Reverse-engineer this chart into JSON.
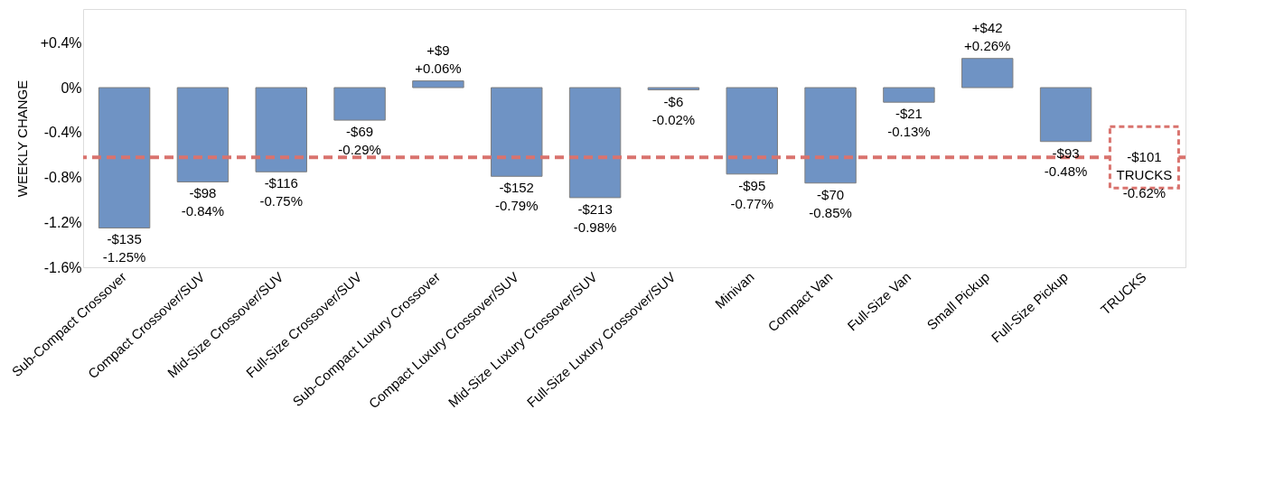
{
  "chart_data": {
    "type": "bar",
    "ylabel": "WEEKLY CHANGE",
    "categories": [
      "Sub-Compact Crossover",
      "Compact Crossover/SUV",
      "Mid-Size Crossover/SUV",
      "Full-Size Crossover/SUV",
      "Sub-Compact Luxury Crossover",
      "Compact Luxury Crossover/SUV",
      "Mid-Size Luxury Crossover/SUV",
      "Full-Size Luxury Crossover/SUV",
      "Minivan",
      "Compact Van",
      "Full-Size Van",
      "Small Pickup",
      "Full-Size Pickup",
      "TRUCKS"
    ],
    "values": [
      -1.25,
      -0.84,
      -0.75,
      -0.29,
      0.06,
      -0.79,
      -0.98,
      -0.02,
      -0.77,
      -0.85,
      -0.13,
      0.26,
      -0.48,
      null
    ],
    "value_labels": [
      "-$135\n-1.25%",
      "-$98\n-0.84%",
      "-$116\n-0.75%",
      "-$69\n-0.29%",
      "+$9\n+0.06%",
      "-$152\n-0.79%",
      "-$213\n-0.98%",
      "-$6\n-0.02%",
      "-$95\n-0.77%",
      "-$70\n-0.85%",
      "-$21\n-0.13%",
      "+$42\n+0.26%",
      "-$93\n-0.48%",
      null
    ],
    "color": "#6f93c4",
    "ylim": [
      -1.6,
      0.7
    ],
    "yticks": [
      {
        "value": 0.4,
        "label": "+0.4%"
      },
      {
        "value": 0,
        "label": "0%"
      },
      {
        "value": -0.4,
        "label": "-0.4%"
      },
      {
        "value": -0.8,
        "label": "-0.8%"
      },
      {
        "value": -1.2,
        "label": "-1.2%"
      },
      {
        "value": -1.6,
        "label": "-1.6%"
      }
    ],
    "ref_lines": [
      {
        "axis": "y",
        "value": -0.62,
        "label": "-$101\nTRUCKS\n-0.62%",
        "color": "#d9736e",
        "line_style": "dashed"
      }
    ],
    "grid": false
  }
}
